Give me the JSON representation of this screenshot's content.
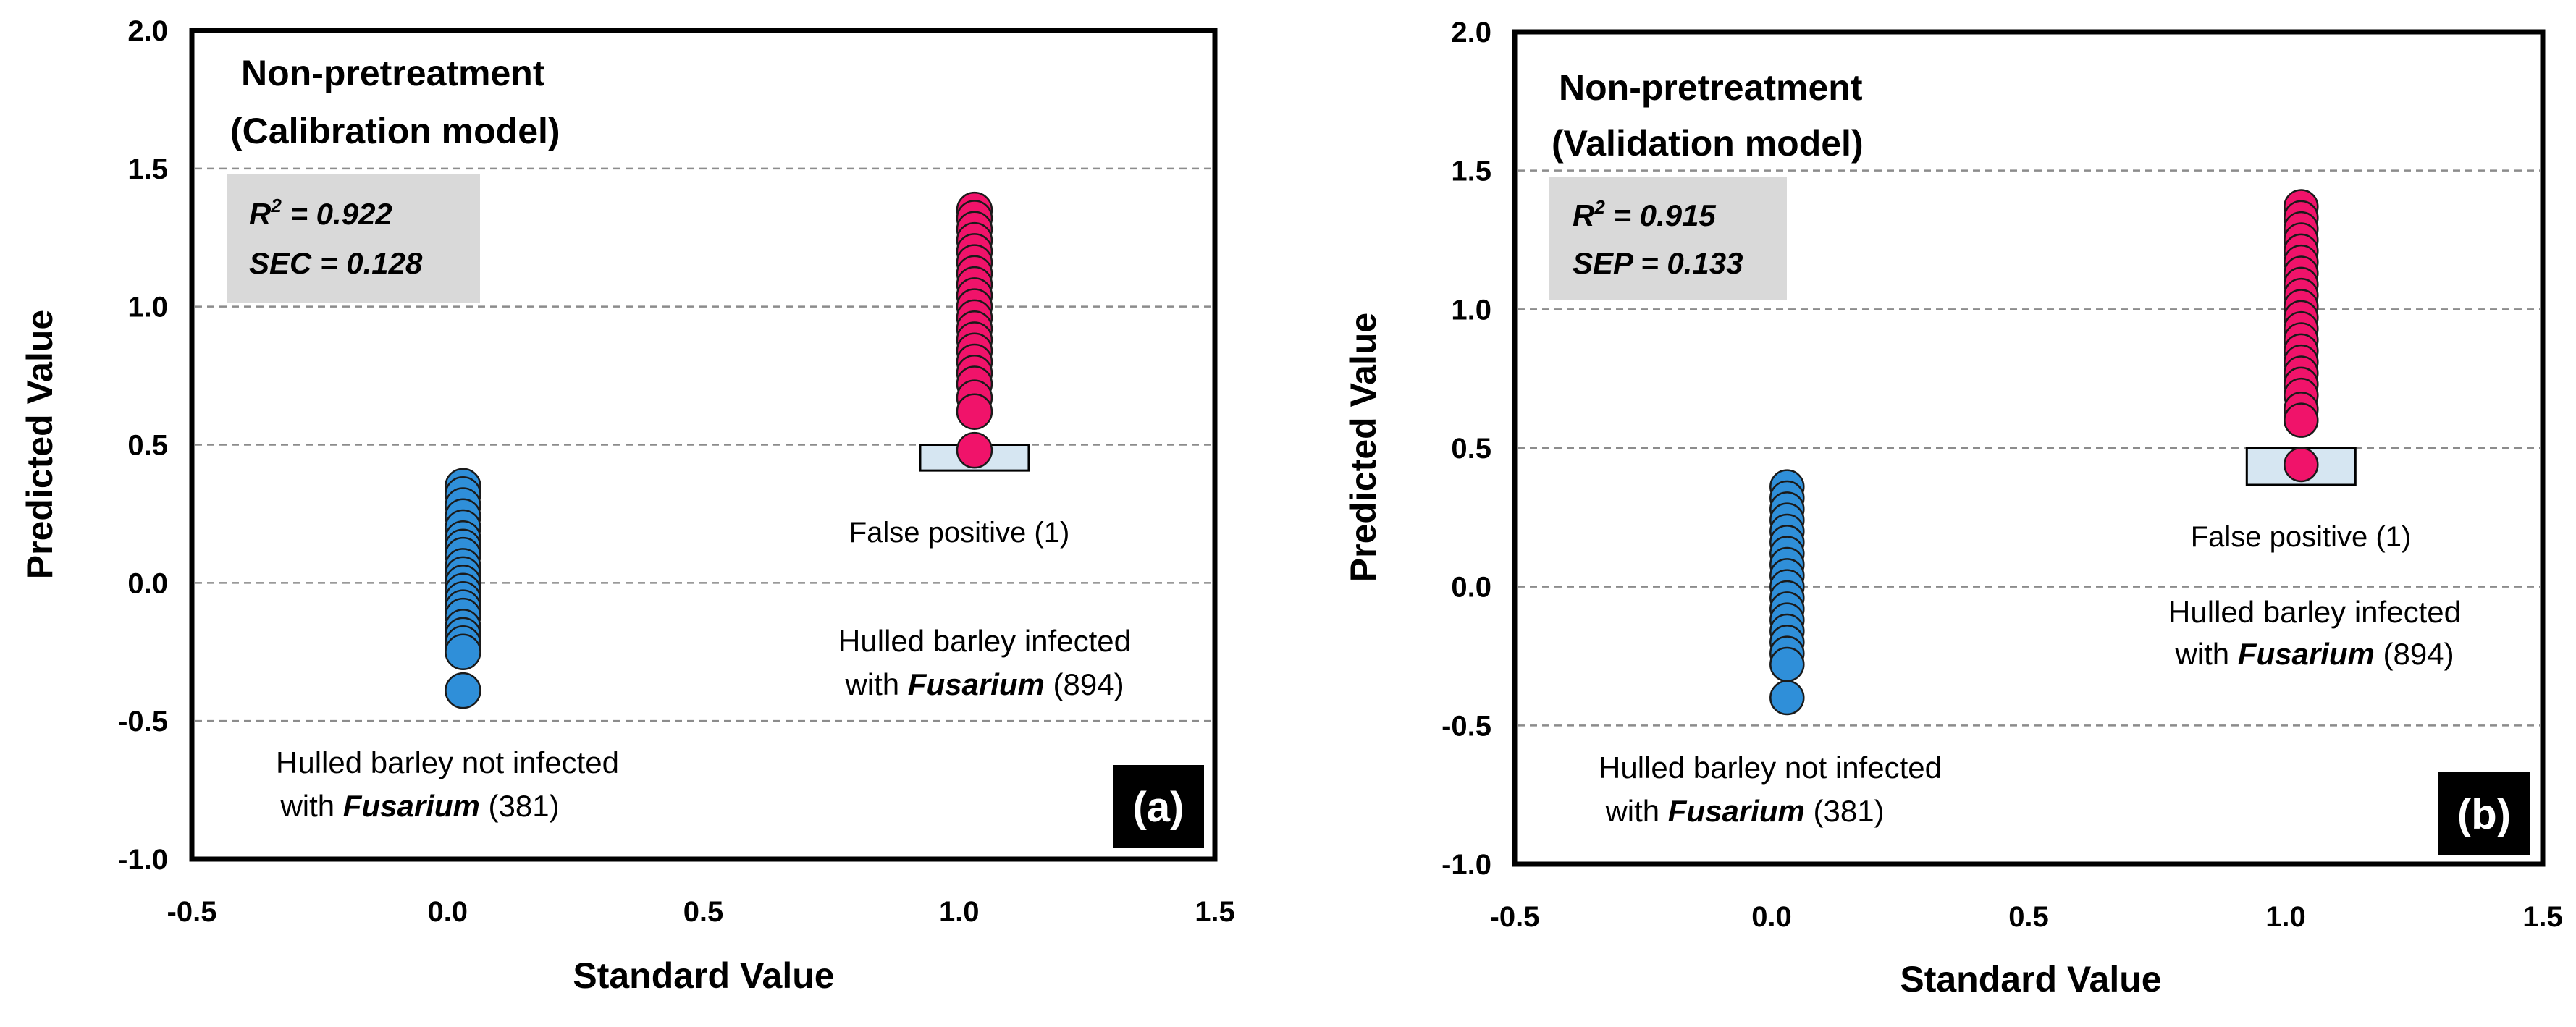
{
  "chart_data": [
    {
      "type": "scatter",
      "title_line1": "Non-pretreatment",
      "title_line2": "(Calibration model)",
      "xlabel": "Standard Value",
      "ylabel": "Predicted Value",
      "xlim": [
        -0.5,
        1.5
      ],
      "ylim": [
        -1.0,
        2.0
      ],
      "xticks": [
        "-0.5",
        "0.0",
        "0.5",
        "1.0",
        "1.5"
      ],
      "yticks": [
        "2.0",
        "1.5",
        "1.0",
        "0.5",
        "0.0",
        "-0.5",
        "-1.0"
      ],
      "grid": "horizontal-dashed",
      "stats": {
        "r2_label": "R",
        "r2_sup": "2",
        "r2_text": " =  0.922",
        "error_text": "SEC = 0.128"
      },
      "panel_label": "(a)",
      "annotations": {
        "false_positive": "False positive (1)",
        "infected_line1": "Hulled barley infected",
        "infected_with": "with ",
        "infected_genus": "Fusarium",
        "infected_count": " (894)",
        "healthy_line1": "Hulled barley not infected",
        "healthy_with": "with ",
        "healthy_genus": "Fusarium",
        "healthy_count": " (381)"
      },
      "threshold": 0.5,
      "series": [
        {
          "group": "not-infected",
          "color": "#2f8fd9",
          "x": 0.03,
          "values": [
            0.35,
            0.32,
            0.28,
            0.24,
            0.2,
            0.16,
            0.13,
            0.1,
            0.06,
            0.03,
            0.0,
            -0.03,
            -0.06,
            -0.09,
            -0.12,
            -0.16,
            -0.19,
            -0.22,
            -0.25,
            -0.39
          ]
        },
        {
          "group": "infected",
          "color": "#f0136a",
          "x": 1.03,
          "values": [
            1.35,
            1.32,
            1.28,
            1.24,
            1.2,
            1.16,
            1.12,
            1.08,
            1.04,
            1.0,
            0.96,
            0.92,
            0.88,
            0.84,
            0.8,
            0.76,
            0.72,
            0.67,
            0.62,
            0.48
          ]
        }
      ]
    },
    {
      "type": "scatter",
      "title_line1": "Non-pretreatment",
      "title_line2": "(Validation model)",
      "xlabel": "Standard Value",
      "ylabel": "Predicted Value",
      "xlim": [
        -0.5,
        1.5
      ],
      "ylim": [
        -1.0,
        2.0
      ],
      "xticks": [
        "-0.5",
        "0.0",
        "0.5",
        "1.0",
        "1.5"
      ],
      "yticks": [
        "2.0",
        "1.5",
        "1.0",
        "0.5",
        "0.0",
        "-0.5",
        "-1.0"
      ],
      "grid": "horizontal-dashed",
      "stats": {
        "r2_label": "R",
        "r2_sup": "2",
        "r2_text": " =  0.915",
        "error_text": "SEP = 0.133"
      },
      "panel_label": "(b)",
      "annotations": {
        "false_positive": "False positive (1)",
        "infected_line1": "Hulled barley infected",
        "infected_with": "with ",
        "infected_genus": "Fusarium",
        "infected_count": " (894)",
        "healthy_line1": "Hulled barley not infected",
        "healthy_with": "with ",
        "healthy_genus": "Fusarium",
        "healthy_count": " (381)"
      },
      "threshold": 0.5,
      "series": [
        {
          "group": "not-infected",
          "color": "#2f8fd9",
          "x": 0.03,
          "values": [
            0.36,
            0.32,
            0.28,
            0.24,
            0.2,
            0.16,
            0.12,
            0.08,
            0.04,
            0.0,
            -0.04,
            -0.08,
            -0.12,
            -0.16,
            -0.2,
            -0.24,
            -0.28,
            -0.4
          ]
        },
        {
          "group": "infected",
          "color": "#f0136a",
          "x": 1.03,
          "values": [
            1.37,
            1.33,
            1.29,
            1.25,
            1.21,
            1.17,
            1.13,
            1.09,
            1.05,
            1.01,
            0.97,
            0.93,
            0.89,
            0.85,
            0.81,
            0.77,
            0.73,
            0.69,
            0.64,
            0.6,
            0.44
          ]
        }
      ]
    }
  ]
}
